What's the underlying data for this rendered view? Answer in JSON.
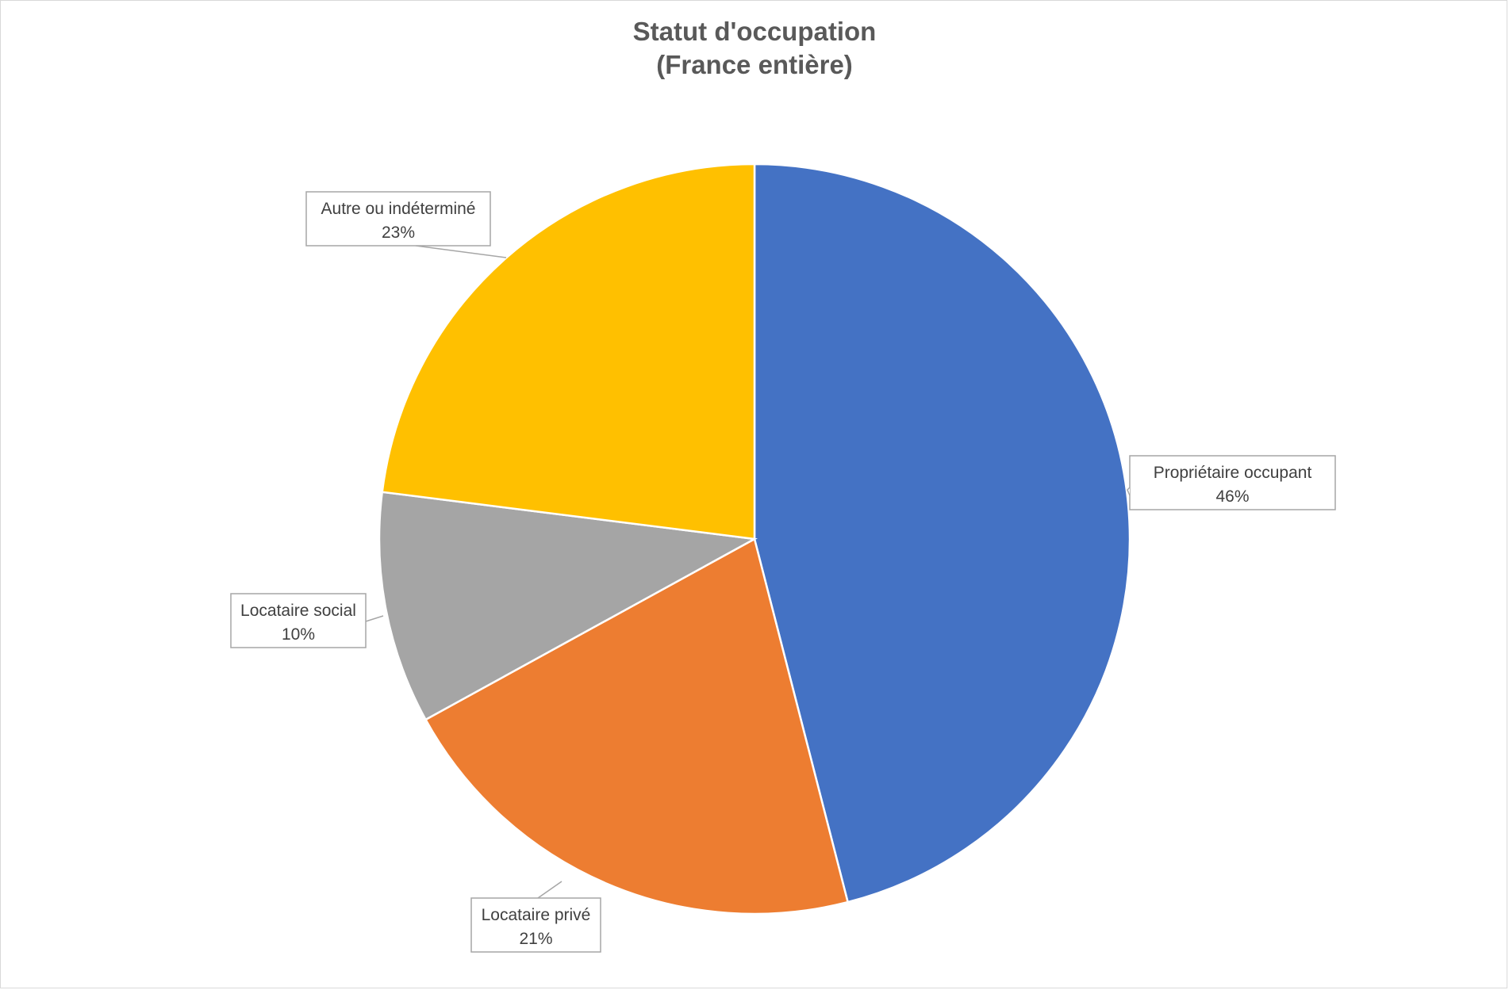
{
  "chart_data": {
    "type": "pie",
    "title": "Statut d'occupation",
    "subtitle": "(France entière)",
    "slices": [
      {
        "label": "Propriétaire occupant",
        "value": 46,
        "display": "46%",
        "color": "#4472C4"
      },
      {
        "label": "Locataire privé",
        "value": 21,
        "display": "21%",
        "color": "#ED7D31"
      },
      {
        "label": "Locataire social",
        "value": 10,
        "display": "10%",
        "color": "#A5A5A5"
      },
      {
        "label": "Autre ou indéterminé",
        "value": 23,
        "display": "23%",
        "color": "#FFC000"
      }
    ],
    "start_angle_deg": 0,
    "direction": "clockwise",
    "legend": "none",
    "data_labels": "callouts"
  }
}
